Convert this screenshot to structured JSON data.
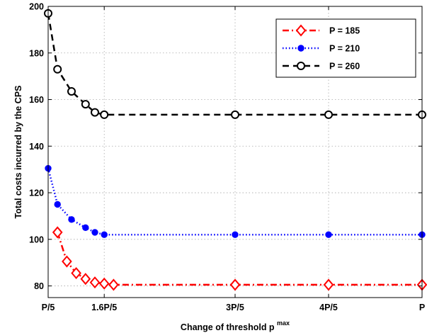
{
  "chart_data": {
    "type": "line",
    "xlabel": "Change of threshold p",
    "xlabel_sup": "max",
    "ylabel": "Total costs incurred by the CPS",
    "ylim": [
      75,
      200
    ],
    "xlim": [
      0.2,
      1.0
    ],
    "yticks": [
      80,
      100,
      120,
      140,
      160,
      180,
      200
    ],
    "xticks": [
      {
        "value": 0.2,
        "label": "P/5"
      },
      {
        "value": 0.32,
        "label": "1.6P/5"
      },
      {
        "value": 0.6,
        "label": "3P/5"
      },
      {
        "value": 0.8,
        "label": "4P/5"
      },
      {
        "value": 1.0,
        "label": "P"
      }
    ],
    "grid": true,
    "legend_position": "top-right",
    "series": [
      {
        "name": "P = 185",
        "color": "#ff0000",
        "line_style": "dash-dot",
        "marker": "diamond",
        "x": [
          0.2,
          0.22,
          0.24,
          0.26,
          0.28,
          0.3,
          0.32,
          0.34,
          0.6,
          0.8,
          1.0
        ],
        "y": [
          null,
          103,
          90.5,
          85.5,
          83,
          81.5,
          81,
          80.5,
          80.5,
          80.5,
          80.5
        ],
        "markers_at": [
          0.2,
          0.22,
          0.25,
          0.28,
          0.3,
          0.32,
          0.6,
          0.8,
          1.0
        ]
      },
      {
        "name": "P = 210",
        "color": "#0000ff",
        "line_style": "dotted",
        "marker": "dot",
        "x": [
          0.2,
          0.22,
          0.25,
          0.28,
          0.3,
          0.32,
          0.6,
          0.8,
          1.0
        ],
        "y": [
          130.5,
          115,
          108.5,
          105,
          103,
          102,
          102,
          102,
          102
        ]
      },
      {
        "name": "P = 260",
        "color": "#000000",
        "line_style": "dashed",
        "marker": "open-circle",
        "x": [
          0.2,
          0.22,
          0.25,
          0.28,
          0.3,
          0.32,
          0.6,
          0.8,
          1.0
        ],
        "y": [
          197,
          173,
          163.5,
          158,
          154.5,
          153.5,
          153.5,
          153.5,
          153.5
        ]
      }
    ]
  }
}
